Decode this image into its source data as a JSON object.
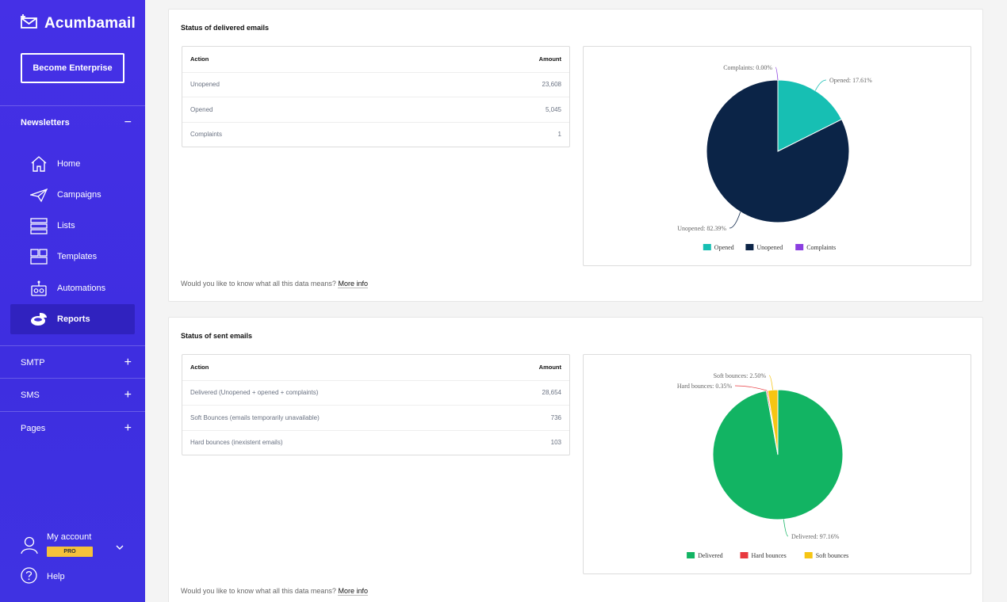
{
  "app": {
    "name": "Acumbamail"
  },
  "sidebar": {
    "enterprise_label": "Become Enterprise",
    "newsletters_label": "Newsletters",
    "items": [
      {
        "label": "Home",
        "icon": "home-icon"
      },
      {
        "label": "Campaigns",
        "icon": "paper-plane-icon"
      },
      {
        "label": "Lists",
        "icon": "list-icon"
      },
      {
        "label": "Templates",
        "icon": "template-icon"
      },
      {
        "label": "Automations",
        "icon": "robot-icon"
      },
      {
        "label": "Reports",
        "icon": "pie-chart-icon",
        "active": true
      }
    ],
    "sections": [
      {
        "label": "SMTP",
        "toggle": "+"
      },
      {
        "label": "SMS",
        "toggle": "+"
      },
      {
        "label": "Pages",
        "toggle": "+"
      }
    ],
    "newsletters_toggle": "−",
    "account_label": "My account",
    "pro_badge": "PRO",
    "help_label": "Help"
  },
  "delivered": {
    "title": "Status of delivered emails",
    "col_action": "Action",
    "col_amount": "Amount",
    "rows": [
      {
        "action": "Unopened",
        "amount": "23,608"
      },
      {
        "action": "Opened",
        "amount": "5,045"
      },
      {
        "action": "Complaints",
        "amount": "1"
      }
    ],
    "more_text": "Would you like to know what all this data means?",
    "more_link": "More info"
  },
  "sent": {
    "title": "Status of sent emails",
    "col_action": "Action",
    "col_amount": "Amount",
    "rows": [
      {
        "action": "Delivered (Unopened + opened + complaints)",
        "amount": "28,654"
      },
      {
        "action": "Soft Bounces (emails temporarily unavailable)",
        "amount": "736"
      },
      {
        "action": "Hard bounces (inexistent emails)",
        "amount": "103"
      }
    ],
    "more_text": "Would you like to know what all this data means?",
    "more_link": "More info"
  },
  "chart_data": [
    {
      "type": "pie",
      "title": "",
      "slices": [
        {
          "name": "Opened",
          "value": 17.61,
          "label": "Opened: 17.61%",
          "color": "#17bfb3"
        },
        {
          "name": "Unopened",
          "value": 82.39,
          "label": "Unopened: 82.39%",
          "color": "#0b2447"
        },
        {
          "name": "Complaints",
          "value": 0.0,
          "label": "Complaints: 0.00%",
          "color": "#8b3fe0"
        }
      ],
      "legend": [
        "Opened",
        "Unopened",
        "Complaints"
      ],
      "legend_position": "bottom"
    },
    {
      "type": "pie",
      "title": "",
      "slices": [
        {
          "name": "Delivered",
          "value": 97.16,
          "label": "Delivered: 97.16%",
          "color": "#12b463"
        },
        {
          "name": "Hard bounces",
          "value": 0.35,
          "label": "Hard bounces: 0.35%",
          "color": "#e8393f"
        },
        {
          "name": "Soft bounces",
          "value": 2.5,
          "label": "Soft bounces: 2.50%",
          "color": "#f6c513"
        }
      ],
      "legend": [
        "Delivered",
        "Hard bounces",
        "Soft bounces"
      ],
      "legend_position": "bottom"
    }
  ]
}
